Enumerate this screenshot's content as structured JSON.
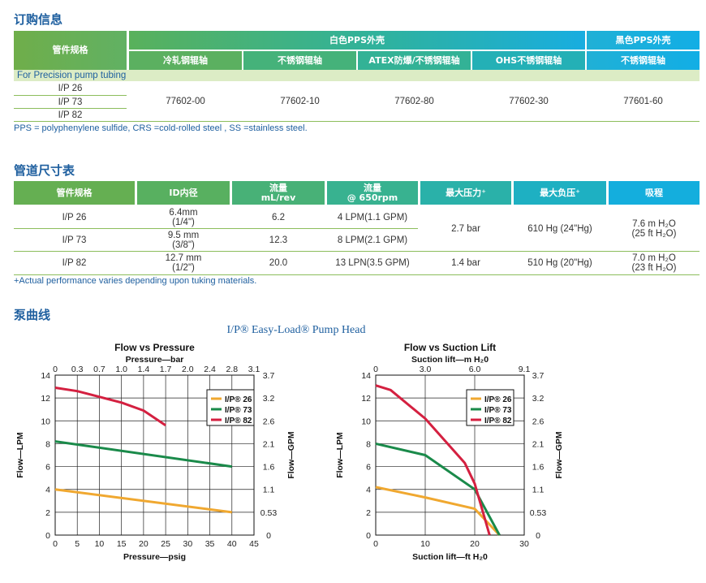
{
  "sections": {
    "order": "订购信息",
    "dims": "管道尺寸表",
    "curve": "泵曲线"
  },
  "order_table": {
    "col_tubing": "管件规格",
    "white_housing": "白色PPS外壳",
    "black_housing": "黑色PPS外壳",
    "sub_headers": [
      "冷轧钢辊轴",
      "不锈钢辊轴",
      "ATEX防爆/不锈钢辊轴",
      "OHS不锈钢辊轴",
      "不锈钢辊轴"
    ],
    "band": "For Precision pump tubing",
    "tubing": [
      "I/P 26",
      "I/P 73",
      "I/P 82"
    ],
    "part_numbers": [
      "77602-00",
      "77602-10",
      "77602-80",
      "77602-30",
      "77601-60"
    ],
    "note": "PPS = polyphenylene sulfide, CRS =cold-rolled steel , SS =stainless steel."
  },
  "dim_table": {
    "headers": [
      "管件规格",
      "ID内径",
      "流量\nmL/rev",
      "流量\n@ 650rpm",
      "最大压力⁺",
      "最大负压⁺",
      "吸程"
    ],
    "rows": [
      {
        "tubing": "I/P 26",
        "id": "6.4mm\n(1/4\")",
        "flow_rev": "6.2",
        "flow_rpm": "4 LPM(1.1 GPM)"
      },
      {
        "tubing": "I/P 73",
        "id": "9.5 mm\n(3/8\")",
        "flow_rev": "12.3",
        "flow_rpm": "8 LPM(2.1 GPM)"
      },
      {
        "tubing": "I/P 82",
        "id": "12.7 mm\n(1/2\")",
        "flow_rev": "20.0",
        "flow_rpm": "13 LPN(3.5 GPM)"
      }
    ],
    "pressure_a": "2.7 bar",
    "vacuum_a": "610 Hg (24\"Hg)",
    "suction_a": "7.6 m H₂O\n(25 ft H₂O)",
    "pressure_b": "1.4 bar",
    "vacuum_b": "510 Hg (20\"Hg)",
    "suction_b": "7.0 m H₂O\n(23 ft H₂O)",
    "note": "+Actual performance varies depending upon tuking materials."
  },
  "pump_head_title": "I/P® Easy-Load® Pump Head",
  "chart_data": [
    {
      "type": "line",
      "title": "Flow vs Pressure",
      "top_axis_label": "Pressure—bar",
      "top_ticks": [
        "0",
        "0.3",
        "0.7",
        "1.0",
        "1.4",
        "1.7",
        "2.0",
        "2.4",
        "2.8",
        "3.1"
      ],
      "xlabel": "Pressure—psig",
      "x_ticks": [
        0,
        5,
        10,
        15,
        20,
        25,
        30,
        35,
        40,
        45
      ],
      "xlim": [
        0,
        45
      ],
      "ylabel": "Flow—LPM",
      "y_ticks": [
        0,
        2,
        4,
        6,
        8,
        10,
        12,
        14
      ],
      "ylim": [
        0,
        14
      ],
      "right_axis_label": "Flow—GPM",
      "right_ticks": [
        "0",
        "0.53",
        "1.1",
        "1.6",
        "2.1",
        "2.6",
        "3.2",
        "3.7"
      ],
      "series": [
        {
          "name": "I/P® 26",
          "color": "#f0a830",
          "x": [
            0,
            40
          ],
          "y": [
            4.0,
            2.0
          ]
        },
        {
          "name": "I/P® 73",
          "color": "#1a8a4a",
          "x": [
            0,
            40
          ],
          "y": [
            8.2,
            6.0
          ]
        },
        {
          "name": "I/P® 82",
          "color": "#d42040",
          "x": [
            0,
            5,
            10,
            15,
            20,
            25
          ],
          "y": [
            12.9,
            12.6,
            12.1,
            11.6,
            10.9,
            9.6
          ]
        }
      ]
    },
    {
      "type": "line",
      "title": "Flow vs Suction Lift",
      "top_axis_label": "Suction lift—m H₂0",
      "top_ticks": [
        "0",
        "3.0",
        "6.0",
        "9.1"
      ],
      "xlabel": "Suction lift—ft H₂0",
      "x_ticks": [
        0,
        10,
        20,
        30
      ],
      "xlim": [
        0,
        30
      ],
      "ylabel": "Flow—LPM",
      "y_ticks": [
        0,
        2,
        4,
        6,
        8,
        10,
        12,
        14
      ],
      "ylim": [
        0,
        14
      ],
      "right_axis_label": "Flow—GPM",
      "right_ticks": [
        "0",
        "0.53",
        "1.1",
        "1.6",
        "2.1",
        "2.6",
        "3.2",
        "3.7"
      ],
      "series": [
        {
          "name": "I/P® 26",
          "color": "#f0a830",
          "x": [
            0,
            10,
            20,
            25
          ],
          "y": [
            4.2,
            3.3,
            2.3,
            0
          ]
        },
        {
          "name": "I/P® 73",
          "color": "#1a8a4a",
          "x": [
            0,
            10,
            20,
            25
          ],
          "y": [
            8.0,
            7.0,
            4.0,
            0
          ]
        },
        {
          "name": "I/P® 82",
          "color": "#d42040",
          "x": [
            0,
            3,
            10,
            18,
            20,
            23
          ],
          "y": [
            13.1,
            12.7,
            10.2,
            6.3,
            4.5,
            0
          ]
        }
      ]
    }
  ]
}
